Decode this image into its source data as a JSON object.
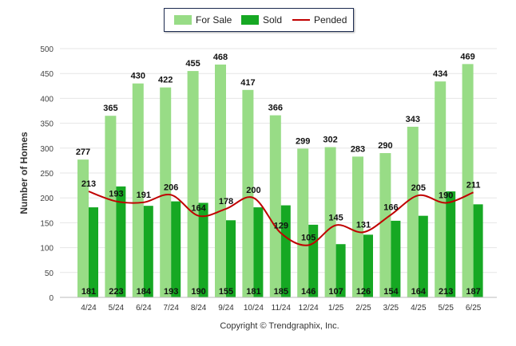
{
  "colors": {
    "for_sale": "#98dc86",
    "sold": "#16a823",
    "pended": "#c00000",
    "grid": "#e6e6e6"
  },
  "legend": {
    "for_sale": "For Sale",
    "sold": "Sold",
    "pended": "Pended"
  },
  "copyright": "Copyright © Trendgraphix, Inc.",
  "chart_data": {
    "type": "bar",
    "ylabel": "Number of Homes",
    "ylim": [
      0,
      500
    ],
    "yticks": [
      0,
      50,
      100,
      150,
      200,
      250,
      300,
      350,
      400,
      450,
      500
    ],
    "grid": true,
    "legend_position": "top-center",
    "categories": [
      "4/24",
      "5/24",
      "6/24",
      "7/24",
      "8/24",
      "9/24",
      "10/24",
      "11/24",
      "12/24",
      "1/25",
      "2/25",
      "3/25",
      "4/25",
      "5/25",
      "6/25"
    ],
    "series": [
      {
        "name": "For Sale",
        "type": "bar",
        "values": [
          277,
          365,
          430,
          422,
          455,
          468,
          417,
          366,
          299,
          302,
          283,
          290,
          343,
          434,
          469
        ]
      },
      {
        "name": "Sold",
        "type": "bar",
        "values": [
          181,
          223,
          184,
          193,
          190,
          155,
          181,
          185,
          146,
          107,
          126,
          154,
          164,
          213,
          187
        ]
      },
      {
        "name": "Pended",
        "type": "line",
        "values": [
          213,
          193,
          191,
          206,
          164,
          178,
          200,
          129,
          105,
          145,
          131,
          166,
          205,
          190,
          211
        ]
      }
    ]
  }
}
